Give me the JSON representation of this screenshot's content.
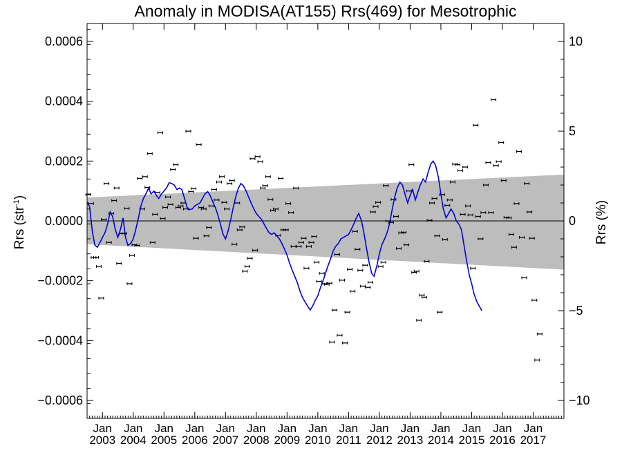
{
  "chart_data": {
    "type": "scatter",
    "title": "Anomaly in MODISA(AT155) Rrs(469) for Mesotrophic",
    "ylabel": "Rrs (str",
    "ylabel_sup": "-1",
    "ylabel_close": ")",
    "y2label": "Rrs (%)",
    "xlim": [
      2002.5,
      2018.0
    ],
    "ylim": [
      -0.00066,
      0.00066
    ],
    "y2lim": [
      -11,
      11
    ],
    "yticks": [
      {
        "v": 0.0006,
        "label": "0.0006"
      },
      {
        "v": 0.0004,
        "label": "0.0004"
      },
      {
        "v": 0.0002,
        "label": "0.0002"
      },
      {
        "v": 0.0,
        "label": "0.0000"
      },
      {
        "v": -0.0002,
        "label": "−0.0002"
      },
      {
        "v": -0.0004,
        "label": "−0.0004"
      },
      {
        "v": -0.0006,
        "label": "−0.0006"
      }
    ],
    "y2ticks": [
      {
        "v": 10,
        "label": "10"
      },
      {
        "v": 5,
        "label": "5"
      },
      {
        "v": 0,
        "label": "0"
      },
      {
        "v": -5,
        "label": "−5"
      },
      {
        "v": -10,
        "label": "−10"
      }
    ],
    "xticks": [
      {
        "v": 2003.0,
        "month": "Jan",
        "year": "2003"
      },
      {
        "v": 2004.0,
        "month": "Jan",
        "year": "2004"
      },
      {
        "v": 2005.0,
        "month": "Jan",
        "year": "2005"
      },
      {
        "v": 2006.0,
        "month": "Jan",
        "year": "2006"
      },
      {
        "v": 2007.0,
        "month": "Jan",
        "year": "2007"
      },
      {
        "v": 2008.0,
        "month": "Jan",
        "year": "2008"
      },
      {
        "v": 2009.0,
        "month": "Jan",
        "year": "2009"
      },
      {
        "v": 2010.0,
        "month": "Jan",
        "year": "2010"
      },
      {
        "v": 2011.0,
        "month": "Jan",
        "year": "2011"
      },
      {
        "v": 2012.0,
        "month": "Jan",
        "year": "2012"
      },
      {
        "v": 2013.0,
        "month": "Jan",
        "year": "2013"
      },
      {
        "v": 2014.0,
        "month": "Jan",
        "year": "2014"
      },
      {
        "v": 2015.0,
        "month": "Jan",
        "year": "2015"
      },
      {
        "v": 2016.0,
        "month": "Jan",
        "year": "2016"
      },
      {
        "v": 2017.0,
        "month": "Jan",
        "year": "2017"
      }
    ],
    "band": {
      "x": [
        2002.5,
        2018.0
      ],
      "upper": [
        7.8e-05,
        0.000155
      ],
      "lower": [
        -7.8e-05,
        -0.000163
      ],
      "color": "#bdbdbd"
    },
    "zero_line": 0.0,
    "colors": {
      "points": "#000000",
      "line": "#0000dd"
    },
    "points": [
      [
        2002.54,
        8.8e-05
      ],
      [
        2002.63,
        5.8e-05
      ],
      [
        2002.71,
        -0.000122
      ],
      [
        2002.79,
        -0.000122
      ],
      [
        2002.88,
        -0.000152
      ],
      [
        2002.96,
        -0.000258
      ],
      [
        2003.04,
        5e-06
      ],
      [
        2003.13,
        0.000125
      ],
      [
        2003.21,
        -7.2e-05
      ],
      [
        2003.29,
        2.5e-05
      ],
      [
        2003.38,
        6.8e-05
      ],
      [
        2003.46,
        0.00011
      ],
      [
        2003.54,
        -0.000142
      ],
      [
        2003.63,
        -4.2e-05
      ],
      [
        2003.71,
        -4.2e-05
      ],
      [
        2003.79,
        4.2e-05
      ],
      [
        2003.88,
        -0.00021
      ],
      [
        2003.96,
        -0.000115
      ],
      [
        2004.04,
        -8e-05
      ],
      [
        2004.13,
        -8.2e-05
      ],
      [
        2004.21,
        0.000142
      ],
      [
        2004.29,
        4e-05
      ],
      [
        2004.38,
        0.000148
      ],
      [
        2004.46,
        0.000112
      ],
      [
        2004.54,
        0.000225
      ],
      [
        2004.63,
        -7.2e-05
      ],
      [
        2004.71,
        2.2e-05
      ],
      [
        2004.79,
        9.5e-05
      ],
      [
        2004.88,
        0.000295
      ],
      [
        2004.96,
        8e-06
      ],
      [
        2005.04,
        4.5e-05
      ],
      [
        2005.13,
        8e-05
      ],
      [
        2005.21,
        5.5e-05
      ],
      [
        2005.29,
        0.000172
      ],
      [
        2005.38,
        0.000188
      ],
      [
        2005.46,
        4.5e-05
      ],
      [
        2005.54,
        5e-05
      ],
      [
        2005.63,
        6e-05
      ],
      [
        2005.71,
        4e-05
      ],
      [
        2005.79,
        0.0003
      ],
      [
        2005.88,
        9.8e-05
      ],
      [
        2005.96,
        0.000108
      ],
      [
        2006.04,
        -5.8e-05
      ],
      [
        2006.13,
        0.000255
      ],
      [
        2006.21,
        4.5e-05
      ],
      [
        2006.29,
        4e-05
      ],
      [
        2006.38,
        -5e-05
      ],
      [
        2006.46,
        -2.2e-05
      ],
      [
        2006.54,
        5e-05
      ],
      [
        2006.63,
        0.000105
      ],
      [
        2006.71,
        7e-05
      ],
      [
        2006.79,
        0.00013
      ],
      [
        2006.88,
        0.000148
      ],
      [
        2006.96,
        6.2e-05
      ],
      [
        2007.04,
        4e-05
      ],
      [
        2007.13,
        0.000125
      ],
      [
        2007.21,
        0.000135
      ],
      [
        2007.29,
        -7.8e-05
      ],
      [
        2007.38,
        6e-05
      ],
      [
        2007.46,
        -3e-05
      ],
      [
        2007.54,
        -2e-05
      ],
      [
        2007.63,
        -0.000168
      ],
      [
        2007.71,
        -0.000152
      ],
      [
        2007.79,
        -0.000125
      ],
      [
        2007.88,
        0.000208
      ],
      [
        2007.96,
        -9.8e-05
      ],
      [
        2008.04,
        0.000215
      ],
      [
        2008.13,
        0.000198
      ],
      [
        2008.21,
        0.00011
      ],
      [
        2008.29,
        0.000118
      ],
      [
        2008.38,
        0.000148
      ],
      [
        2008.46,
        7.2e-05
      ],
      [
        2008.54,
        3.5e-05
      ],
      [
        2008.63,
        4e-05
      ],
      [
        2008.71,
        -4.8e-05
      ],
      [
        2008.79,
        0.000142
      ],
      [
        2008.88,
        -3e-05
      ],
      [
        2008.96,
        -3e-05
      ],
      [
        2009.04,
        5.8e-05
      ],
      [
        2009.13,
        2.8e-05
      ],
      [
        2009.21,
        -8.5e-05
      ],
      [
        2009.29,
        0.00011
      ],
      [
        2009.38,
        -8.5e-05
      ],
      [
        2009.46,
        -7.2e-05
      ],
      [
        2009.54,
        -5.8e-05
      ],
      [
        2009.63,
        -0.000158
      ],
      [
        2009.71,
        -8.5e-05
      ],
      [
        2009.79,
        -7.2e-05
      ],
      [
        2009.88,
        -5.2e-05
      ],
      [
        2009.96,
        -0.000138
      ],
      [
        2010.04,
        -0.000202
      ],
      [
        2010.13,
        -0.000175
      ],
      [
        2010.21,
        -0.00021
      ],
      [
        2010.29,
        -0.000212
      ],
      [
        2010.38,
        -0.000208
      ],
      [
        2010.46,
        -0.000405
      ],
      [
        2010.54,
        -0.000298
      ],
      [
        2010.63,
        -0.000112
      ],
      [
        2010.71,
        -0.000382
      ],
      [
        2010.79,
        -0.000198
      ],
      [
        2010.88,
        -0.000408
      ],
      [
        2010.96,
        -0.000305
      ],
      [
        2011.04,
        -0.000162
      ],
      [
        2011.13,
        -0.000235
      ],
      [
        2011.21,
        -3.5e-05
      ],
      [
        2011.29,
        -9.5e-05
      ],
      [
        2011.38,
        -0.000165
      ],
      [
        2011.46,
        -0.000218
      ],
      [
        2011.54,
        -0.000148
      ],
      [
        2011.63,
        -0.000222
      ],
      [
        2011.71,
        -0.000205
      ],
      [
        2011.79,
        3e-05
      ],
      [
        2011.88,
        4.8e-05
      ],
      [
        2011.96,
        6.2e-05
      ],
      [
        2012.04,
        -0.000152
      ],
      [
        2012.13,
        -0.000138
      ],
      [
        2012.21,
        0.000118
      ],
      [
        2012.29,
        0.0
      ],
      [
        2012.38,
        -5e-06
      ],
      [
        2012.46,
        7.2e-05
      ],
      [
        2012.54,
        1.5e-05
      ],
      [
        2012.63,
        -9.2e-05
      ],
      [
        2012.71,
        -4e-05
      ],
      [
        2012.79,
        -3.8e-05
      ],
      [
        2012.88,
        -8e-05
      ],
      [
        2012.96,
        0.0001
      ],
      [
        2013.04,
        0.000188
      ],
      [
        2013.13,
        -0.000172
      ],
      [
        2013.21,
        -0.000168
      ],
      [
        2013.29,
        -0.000332
      ],
      [
        2013.38,
        -0.000248
      ],
      [
        2013.46,
        -0.000255
      ],
      [
        2013.54,
        -0.000135
      ],
      [
        2013.63,
        2e-06
      ],
      [
        2013.71,
        6e-05
      ],
      [
        2013.79,
        7.5e-05
      ],
      [
        2013.88,
        -5e-05
      ],
      [
        2013.96,
        -0.000305
      ],
      [
        2014.04,
        8.8e-05
      ],
      [
        2014.13,
        -6.2e-05
      ],
      [
        2014.21,
        5.2e-05
      ],
      [
        2014.29,
        7e-05
      ],
      [
        2014.38,
        0.00013
      ],
      [
        2014.46,
        0.00019
      ],
      [
        2014.54,
        0.000188
      ],
      [
        2014.63,
        0.000168
      ],
      [
        2014.71,
        2.2e-05
      ],
      [
        2014.79,
        0.00018
      ],
      [
        2014.88,
        5e-05
      ],
      [
        2014.96,
        2e-05
      ],
      [
        2015.04,
        -0.000158
      ],
      [
        2015.13,
        0.00032
      ],
      [
        2015.21,
        1.5e-05
      ],
      [
        2015.29,
        -6e-05
      ],
      [
        2015.38,
        2.8e-05
      ],
      [
        2015.46,
        0.00012
      ],
      [
        2015.54,
        0.000195
      ],
      [
        2015.63,
        2.8e-05
      ],
      [
        2015.71,
        0.000405
      ],
      [
        2015.79,
        0.000185
      ],
      [
        2015.88,
        0.000198
      ],
      [
        2015.96,
        0.000262
      ],
      [
        2016.04,
        0.000135
      ],
      [
        2016.13,
        1.2e-05
      ],
      [
        2016.21,
        1e-05
      ],
      [
        2016.29,
        -4.5e-05
      ],
      [
        2016.38,
        -8.8e-05
      ],
      [
        2016.46,
        5.8e-05
      ],
      [
        2016.54,
        0.000232
      ],
      [
        2016.63,
        -5.5e-05
      ],
      [
        2016.71,
        -0.00019
      ],
      [
        2016.79,
        0.000125
      ],
      [
        2016.88,
        3e-05
      ],
      [
        2016.96,
        -5.8e-05
      ],
      [
        2017.04,
        -0.000265
      ],
      [
        2017.13,
        -0.000465
      ],
      [
        2017.21,
        -0.000378
      ]
    ],
    "line": [
      [
        2002.5,
        6.2e-05
      ],
      [
        2002.58,
        4.8e-05
      ],
      [
        2002.67,
        -3.5e-05
      ],
      [
        2002.75,
        -8e-05
      ],
      [
        2002.83,
        -8.8e-05
      ],
      [
        2002.92,
        -7.2e-05
      ],
      [
        2003.0,
        -5.5e-05
      ],
      [
        2003.08,
        -4e-05
      ],
      [
        2003.17,
        -1e-05
      ],
      [
        2003.25,
        3e-05
      ],
      [
        2003.33,
        1.5e-05
      ],
      [
        2003.42,
        -3e-05
      ],
      [
        2003.5,
        -5.5e-05
      ],
      [
        2003.58,
        -3e-05
      ],
      [
        2003.67,
        1e-05
      ],
      [
        2003.75,
        -5.5e-05
      ],
      [
        2003.83,
        -8.2e-05
      ],
      [
        2003.92,
        -7.5e-05
      ],
      [
        2004.0,
        -6e-05
      ],
      [
        2004.08,
        -3e-05
      ],
      [
        2004.17,
        1e-05
      ],
      [
        2004.25,
        5e-05
      ],
      [
        2004.33,
        7.5e-05
      ],
      [
        2004.42,
        9.2e-05
      ],
      [
        2004.5,
        0.00011
      ],
      [
        2004.58,
        9e-05
      ],
      [
        2004.67,
        0.0001
      ],
      [
        2004.75,
        8.5e-05
      ],
      [
        2004.83,
        7.5e-05
      ],
      [
        2004.92,
        9e-05
      ],
      [
        2005.0,
        0.0001
      ],
      [
        2005.08,
        0.00011
      ],
      [
        2005.17,
        0.000128
      ],
      [
        2005.25,
        0.000125
      ],
      [
        2005.33,
        0.00012
      ],
      [
        2005.42,
        0.000105
      ],
      [
        2005.5,
        0.00011
      ],
      [
        2005.58,
        0.000105
      ],
      [
        2005.67,
        7.5e-05
      ],
      [
        2005.75,
        4.5e-05
      ],
      [
        2005.83,
        3.8e-05
      ],
      [
        2005.92,
        4e-05
      ],
      [
        2006.0,
        5e-05
      ],
      [
        2006.08,
        5.5e-05
      ],
      [
        2006.17,
        6e-05
      ],
      [
        2006.25,
        7.5e-05
      ],
      [
        2006.33,
        9e-05
      ],
      [
        2006.42,
        9.8e-05
      ],
      [
        2006.5,
        8.5e-05
      ],
      [
        2006.58,
        6.5e-05
      ],
      [
        2006.67,
        4.5e-05
      ],
      [
        2006.75,
        2e-05
      ],
      [
        2006.83,
        -1e-05
      ],
      [
        2006.92,
        -4.5e-05
      ],
      [
        2007.0,
        -6e-05
      ],
      [
        2007.08,
        -3.5e-05
      ],
      [
        2007.17,
        5e-06
      ],
      [
        2007.25,
        4.5e-05
      ],
      [
        2007.33,
        8e-05
      ],
      [
        2007.42,
        0.00011
      ],
      [
        2007.5,
        0.000125
      ],
      [
        2007.58,
        0.000118
      ],
      [
        2007.67,
        0.0001
      ],
      [
        2007.75,
        8e-05
      ],
      [
        2007.83,
        6e-05
      ],
      [
        2007.92,
        4e-05
      ],
      [
        2008.0,
        2.5e-05
      ],
      [
        2008.08,
        1.5e-05
      ],
      [
        2008.17,
        5e-06
      ],
      [
        2008.25,
        -1e-05
      ],
      [
        2008.33,
        -2.5e-05
      ],
      [
        2008.42,
        -4e-05
      ],
      [
        2008.5,
        -4.5e-05
      ],
      [
        2008.58,
        -4e-05
      ],
      [
        2008.67,
        -5e-05
      ],
      [
        2008.75,
        -6e-05
      ],
      [
        2008.83,
        -7.5e-05
      ],
      [
        2008.92,
        -9.5e-05
      ],
      [
        2009.0,
        -0.000115
      ],
      [
        2009.08,
        -0.00014
      ],
      [
        2009.17,
        -0.000165
      ],
      [
        2009.25,
        -0.000185
      ],
      [
        2009.33,
        -0.000205
      ],
      [
        2009.42,
        -0.000235
      ],
      [
        2009.5,
        -0.000255
      ],
      [
        2009.58,
        -0.00027
      ],
      [
        2009.67,
        -0.000285
      ],
      [
        2009.75,
        -0.000298
      ],
      [
        2009.83,
        -0.000285
      ],
      [
        2009.92,
        -0.000265
      ],
      [
        2010.0,
        -0.00025
      ],
      [
        2010.08,
        -0.000225
      ],
      [
        2010.17,
        -0.0002
      ],
      [
        2010.25,
        -0.000175
      ],
      [
        2010.33,
        -0.00015
      ],
      [
        2010.42,
        -0.000125
      ],
      [
        2010.5,
        -0.0001
      ],
      [
        2010.58,
        -8.5e-05
      ],
      [
        2010.67,
        -7.5e-05
      ],
      [
        2010.75,
        -6e-05
      ],
      [
        2010.83,
        -5.5e-05
      ],
      [
        2010.92,
        -5e-05
      ],
      [
        2011.0,
        -4.5e-05
      ],
      [
        2011.08,
        -3e-05
      ],
      [
        2011.17,
        -1e-05
      ],
      [
        2011.25,
        1e-05
      ],
      [
        2011.33,
        2.5e-05
      ],
      [
        2011.42,
        0.0
      ],
      [
        2011.5,
        -4e-05
      ],
      [
        2011.58,
        -9e-05
      ],
      [
        2011.67,
        -0.00014
      ],
      [
        2011.75,
        -0.000175
      ],
      [
        2011.83,
        -0.000185
      ],
      [
        2011.92,
        -0.00015
      ],
      [
        2012.0,
        -0.00011
      ],
      [
        2012.08,
        -8e-05
      ],
      [
        2012.17,
        -6e-05
      ],
      [
        2012.25,
        -4e-05
      ],
      [
        2012.33,
        -1e-05
      ],
      [
        2012.42,
        4e-05
      ],
      [
        2012.5,
        8e-05
      ],
      [
        2012.58,
        0.00011
      ],
      [
        2012.67,
        0.00013
      ],
      [
        2012.75,
        0.00012
      ],
      [
        2012.83,
        9e-05
      ],
      [
        2012.92,
        6e-05
      ],
      [
        2013.0,
        8.5e-05
      ],
      [
        2013.08,
        0.000105
      ],
      [
        2013.17,
        7e-05
      ],
      [
        2013.25,
        9.5e-05
      ],
      [
        2013.33,
        0.00012
      ],
      [
        2013.42,
        0.00014
      ],
      [
        2013.5,
        0.00013
      ],
      [
        2013.58,
        0.00016
      ],
      [
        2013.67,
        0.00019
      ],
      [
        2013.75,
        0.0002
      ],
      [
        2013.83,
        0.000185
      ],
      [
        2013.92,
        0.000145
      ],
      [
        2014.0,
        9e-05
      ],
      [
        2014.08,
        4e-05
      ],
      [
        2014.17,
        1e-05
      ],
      [
        2014.25,
        2.5e-05
      ],
      [
        2014.33,
        4e-05
      ],
      [
        2014.42,
        2.5e-05
      ],
      [
        2014.5,
        0.0
      ],
      [
        2014.58,
        -1e-05
      ],
      [
        2014.67,
        -3e-05
      ],
      [
        2014.75,
        -8e-05
      ],
      [
        2014.83,
        -0.00013
      ],
      [
        2014.92,
        -0.00018
      ],
      [
        2015.0,
        -0.00021
      ],
      [
        2015.08,
        -0.000245
      ],
      [
        2015.17,
        -0.00027
      ],
      [
        2015.25,
        -0.000285
      ],
      [
        2015.33,
        -0.0003
      ]
    ]
  }
}
